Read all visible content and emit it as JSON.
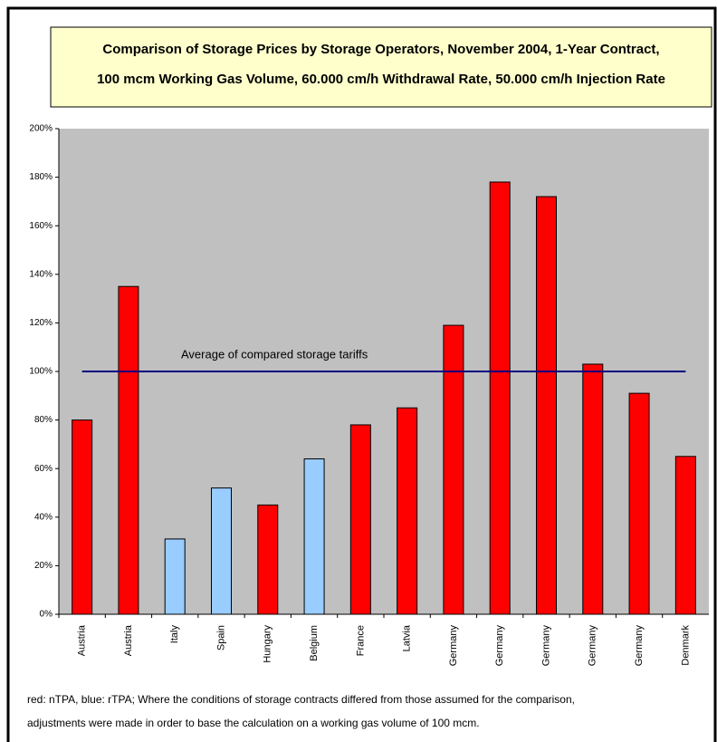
{
  "chart_data": {
    "type": "bar",
    "title": [
      "Comparison of Storage Prices by Storage Operators, November 2004, 1-Year Contract,",
      "100 mcm Working Gas Volume, 60.000 cm/h Withdrawal Rate, 50.000 cm/h Injection Rate"
    ],
    "categories": [
      "Austria",
      "Austria",
      "Italy",
      "Spain",
      "Hungary",
      "Belgium",
      "France",
      "Latvia",
      "Germany",
      "Germany",
      "Germany",
      "Germany",
      "Germany",
      "Denmark"
    ],
    "values": [
      80,
      135,
      31,
      52,
      45,
      64,
      78,
      85,
      119,
      178,
      172,
      103,
      91,
      65
    ],
    "colors": [
      "#ff0000",
      "#ff0000",
      "#99ccff",
      "#99ccff",
      "#ff0000",
      "#99ccff",
      "#ff0000",
      "#ff0000",
      "#ff0000",
      "#ff0000",
      "#ff0000",
      "#ff0000",
      "#ff0000",
      "#ff0000"
    ],
    "ylim": [
      0,
      200
    ],
    "yticks": [
      {
        "value": 0,
        "label": "0%"
      },
      {
        "value": 20,
        "label": "20%"
      },
      {
        "value": 40,
        "label": "40%"
      },
      {
        "value": 60,
        "label": "60%"
      },
      {
        "value": 80,
        "label": "80%"
      },
      {
        "value": 100,
        "label": "100%"
      },
      {
        "value": 120,
        "label": "120%"
      },
      {
        "value": 140,
        "label": "140%"
      },
      {
        "value": 160,
        "label": "160%"
      },
      {
        "value": 180,
        "label": "180%"
      },
      {
        "value": 200,
        "label": "200%"
      }
    ],
    "reference_line": {
      "value": 100,
      "label": "Average of compared storage tariffs",
      "color": "#000080"
    },
    "note": [
      "red: nTPA, blue: rTPA; Where the conditions of storage contracts differed from those assumed for the comparison,",
      "adjustments were made in order to base the calculation on a working gas volume of 100 mcm."
    ]
  }
}
